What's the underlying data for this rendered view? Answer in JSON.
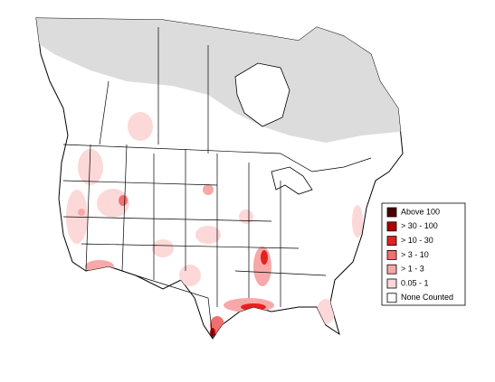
{
  "legend": [
    {
      "label": "Above 100",
      "color": "#4a0000"
    },
    {
      "label": "> 30 - 100",
      "color": "#b00000"
    },
    {
      "label": "> 10 - 30",
      "color": "#e82020"
    },
    {
      "label": "> 3 - 10",
      "color": "#f07070"
    },
    {
      "label": "> 1 - 3",
      "color": "#f8a8a8"
    },
    {
      "label": "0.05 - 1",
      "color": "#fcd8d8"
    },
    {
      "label": "None Counted",
      "color": "#ffffff"
    }
  ]
}
